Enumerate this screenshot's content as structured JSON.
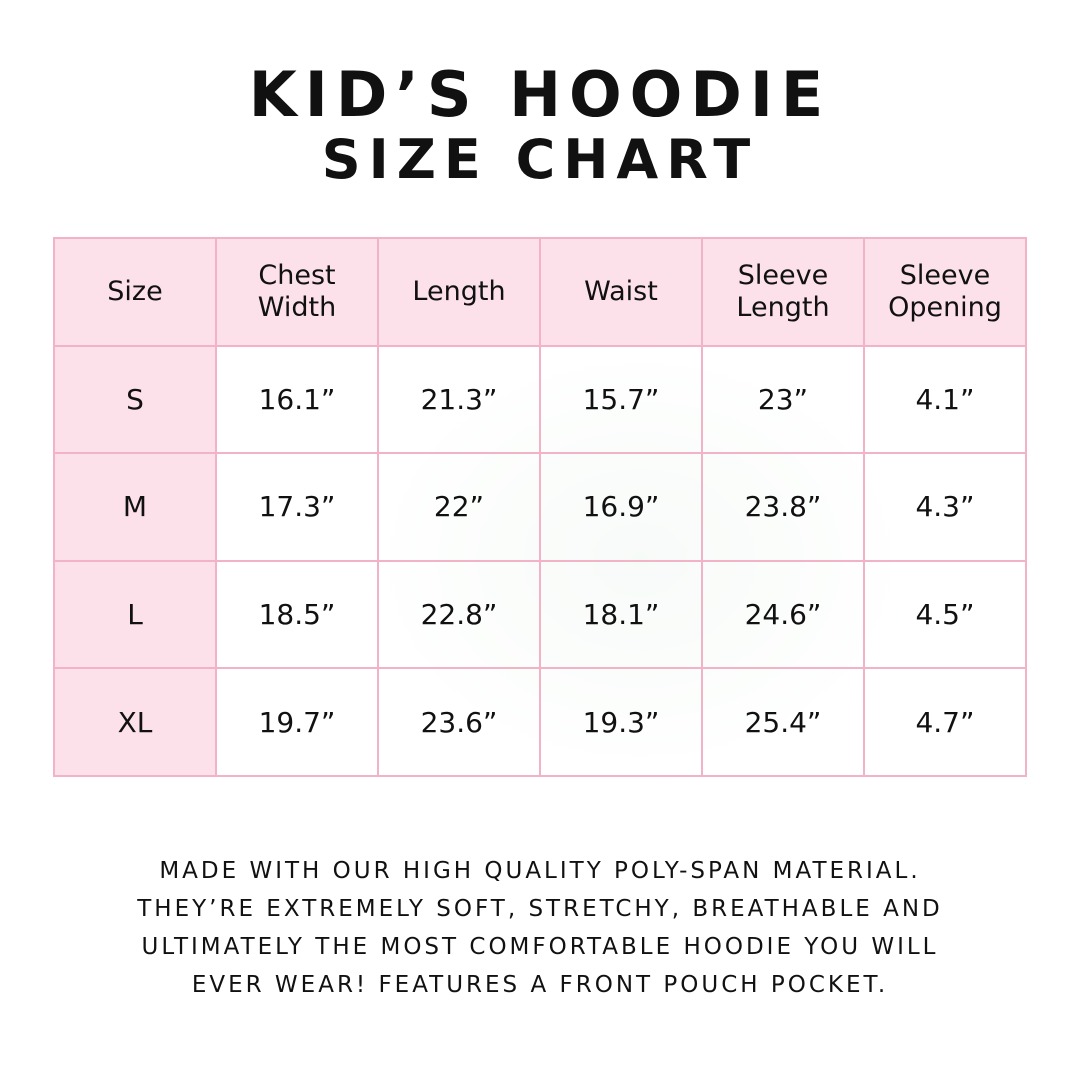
{
  "header": {
    "title": "KID’S HOODIE",
    "subtitle": "SIZE CHART"
  },
  "table": {
    "columns": [
      "Size",
      "Chest Width",
      "Length",
      "Waist",
      "Sleeve Length",
      "Sleeve Opening"
    ],
    "rows": [
      [
        "S",
        "16.1”",
        "21.3”",
        "15.7”",
        "23”",
        "4.1”"
      ],
      [
        "M",
        "17.3”",
        "22”",
        "16.9”",
        "23.8”",
        "4.3”"
      ],
      [
        "L",
        "18.5”",
        "22.8”",
        "18.1”",
        "24.6”",
        "4.5”"
      ],
      [
        "XL",
        "19.7”",
        "23.6”",
        "19.3”",
        "25.4”",
        "4.7”"
      ]
    ]
  },
  "description": {
    "lines": [
      "MADE WITH OUR HIGH QUALITY POLY-SPAN MATERIAL.",
      "THEY’RE EXTREMELY SOFT, STRETCHY, BREATHABLE AND",
      "ULTIMATELY THE MOST COMFORTABLE HOODIE YOU WILL",
      "EVER WEAR! FEATURES A FRONT POUCH POCKET."
    ]
  }
}
